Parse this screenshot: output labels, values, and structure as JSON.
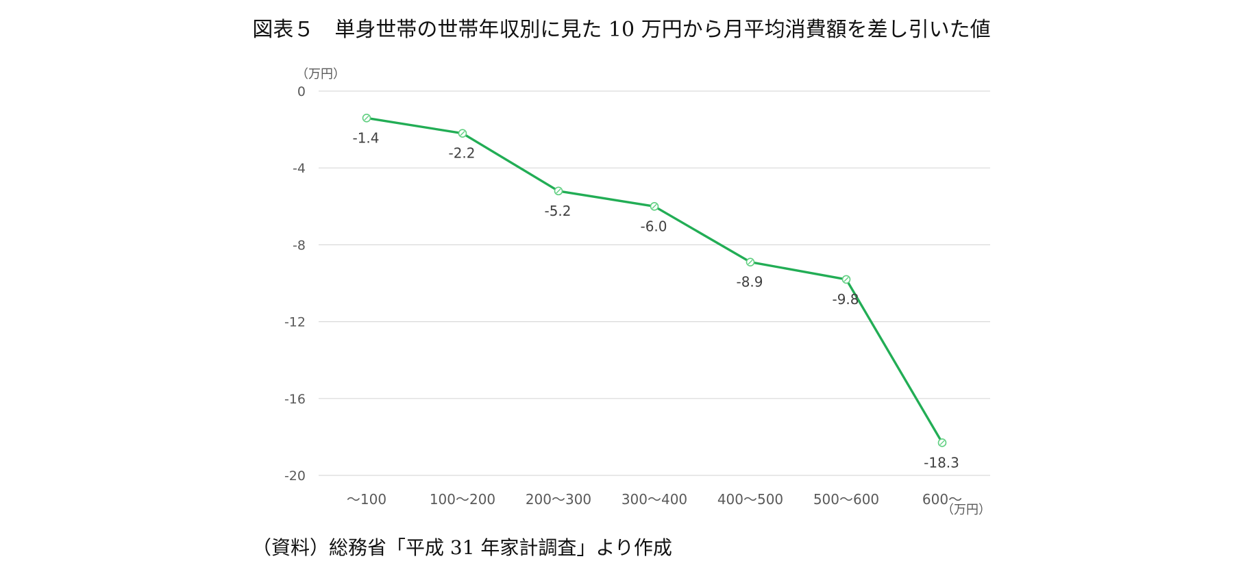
{
  "chart_data": {
    "type": "line",
    "title": "図表５　単身世帯の世帯年収別に見た 10 万円から月平均消費額を差し引いた値",
    "y_unit_label": "（万円）",
    "x_unit_label": "（万円）",
    "categories": [
      "～100",
      "100～200",
      "200～300",
      "300～400",
      "400～500",
      "500～600",
      "600～"
    ],
    "series": [
      {
        "values": [
          -1.4,
          -2.2,
          -5.2,
          -6.0,
          -8.9,
          -9.8,
          -18.3
        ],
        "labels": [
          "-1.4",
          "-2.2",
          "-5.2",
          "-6.0",
          "-8.9",
          "-9.8",
          "-18.3"
        ]
      }
    ],
    "ylim": [
      -20,
      0
    ],
    "yticks": [
      0,
      -4,
      -8,
      -12,
      -16,
      -20
    ],
    "grid": true,
    "line_color": "#22ad55",
    "marker_color": "#5fcf80",
    "grid_color": "#d9d9d9",
    "tick_label_color": "#595959"
  },
  "source": "（資料）総務省「平成 31 年家計調査」より作成"
}
